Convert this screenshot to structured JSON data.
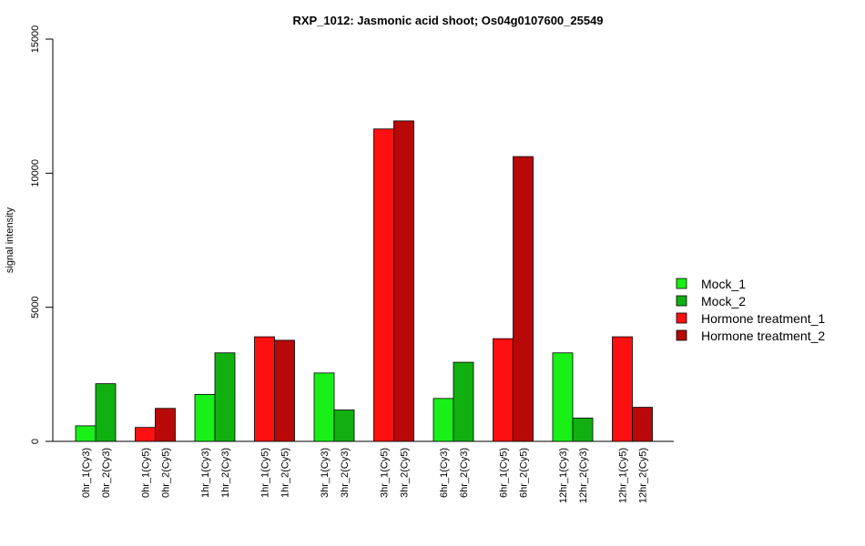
{
  "chart_data": {
    "type": "bar",
    "title": "RXP_1012: Jasmonic acid shoot; Os04g0107600_25549",
    "xlabel": "",
    "ylabel": "signal intensity",
    "ylim": [
      0,
      15000
    ],
    "yticks": [
      "0",
      "5000",
      "10000",
      "15000"
    ],
    "grid": false,
    "legend_position": "right",
    "series": [
      {
        "name": "Mock_1",
        "color": "#18f018"
      },
      {
        "name": "Mock_2",
        "color": "#10b010"
      },
      {
        "name": "Hormone treatment_1",
        "color": "#ff1010"
      },
      {
        "name": "Hormone treatment_2",
        "color": "#b80808"
      }
    ],
    "groups": [
      {
        "bars": [
          {
            "label": "0hr_1(Cy3)",
            "value": 580,
            "series": 0
          },
          {
            "label": "0hr_2(Cy3)",
            "value": 2150,
            "series": 1
          }
        ]
      },
      {
        "bars": [
          {
            "label": "0hr_1(Cy5)",
            "value": 520,
            "series": 2
          },
          {
            "label": "0hr_2(Cy5)",
            "value": 1230,
            "series": 3
          }
        ]
      },
      {
        "bars": [
          {
            "label": "1hr_1(Cy3)",
            "value": 1750,
            "series": 0
          },
          {
            "label": "1hr_2(Cy3)",
            "value": 3300,
            "series": 1
          }
        ]
      },
      {
        "bars": [
          {
            "label": "1hr_1(Cy5)",
            "value": 3900,
            "series": 2
          },
          {
            "label": "1hr_2(Cy5)",
            "value": 3770,
            "series": 3
          }
        ]
      },
      {
        "bars": [
          {
            "label": "3hr_1(Cy3)",
            "value": 2550,
            "series": 0
          },
          {
            "label": "3hr_2(Cy3)",
            "value": 1170,
            "series": 1
          }
        ]
      },
      {
        "bars": [
          {
            "label": "3hr_1(Cy5)",
            "value": 11650,
            "series": 2
          },
          {
            "label": "3hr_2(Cy5)",
            "value": 11950,
            "series": 3
          }
        ]
      },
      {
        "bars": [
          {
            "label": "6hr_1(Cy3)",
            "value": 1600,
            "series": 0
          },
          {
            "label": "6hr_2(Cy3)",
            "value": 2950,
            "series": 1
          }
        ]
      },
      {
        "bars": [
          {
            "label": "6hr_1(Cy5)",
            "value": 3830,
            "series": 2
          },
          {
            "label": "6hr_2(Cy5)",
            "value": 10620,
            "series": 3
          }
        ]
      },
      {
        "bars": [
          {
            "label": "12hr_1(Cy3)",
            "value": 3300,
            "series": 0
          },
          {
            "label": "12hr_2(Cy3)",
            "value": 870,
            "series": 1
          }
        ]
      },
      {
        "bars": [
          {
            "label": "12hr_1(Cy5)",
            "value": 3900,
            "series": 2
          },
          {
            "label": "12hr_2(Cy5)",
            "value": 1270,
            "series": 3
          }
        ]
      }
    ]
  }
}
